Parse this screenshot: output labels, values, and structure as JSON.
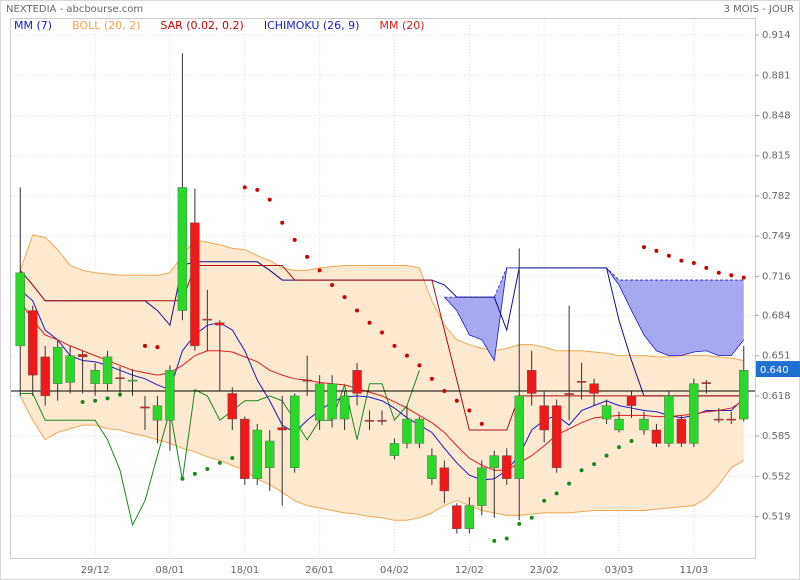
{
  "header": {
    "title": "NEXTEDIA - abcbourse.com",
    "period": "3 MOIS - JOUR"
  },
  "chart_data": {
    "type": "candlestick",
    "categories": [
      null,
      null,
      null,
      null,
      null,
      null,
      "29/12",
      null,
      null,
      null,
      null,
      null,
      "08/01",
      null,
      null,
      null,
      null,
      null,
      "18/01",
      null,
      null,
      null,
      null,
      null,
      "26/01",
      null,
      null,
      null,
      null,
      null,
      "04/02",
      null,
      null,
      null,
      null,
      null,
      "12/02",
      null,
      null,
      null,
      null,
      null,
      "23/02",
      null,
      null,
      null,
      null,
      null,
      "03/03",
      null,
      null,
      null,
      null,
      null,
      "11/03",
      null,
      null,
      null,
      null
    ],
    "open": [
      0.659,
      0.688,
      0.65,
      0.628,
      0.629,
      0.652,
      0.628,
      0.628,
      0.633,
      0.63,
      0.609,
      0.598,
      0.598,
      0.688,
      0.76,
      0.681,
      0.678,
      0.62,
      0.599,
      0.55,
      0.559,
      0.592,
      0.559,
      0.631,
      0.598,
      0.599,
      0.599,
      0.639,
      0.598,
      0.598,
      0.569,
      0.579,
      0.579,
      0.55,
      0.559,
      0.528,
      0.509,
      0.528,
      0.559,
      0.569,
      0.55,
      0.639,
      0.61,
      0.61,
      0.62,
      0.63,
      0.628,
      0.599,
      0.59,
      0.618,
      0.59,
      0.59,
      0.579,
      0.599,
      0.579,
      0.629,
      0.599,
      0.599,
      0.599
    ],
    "high": [
      0.789,
      0.692,
      0.659,
      0.664,
      0.659,
      0.655,
      0.645,
      0.655,
      0.642,
      0.64,
      0.618,
      0.618,
      0.643,
      0.899,
      0.788,
      0.705,
      0.68,
      0.625,
      0.601,
      0.595,
      0.59,
      0.618,
      0.62,
      0.651,
      0.635,
      0.635,
      0.622,
      0.645,
      0.606,
      0.606,
      0.583,
      0.61,
      0.601,
      0.575,
      0.565,
      0.53,
      0.535,
      0.565,
      0.573,
      0.575,
      0.739,
      0.655,
      0.622,
      0.615,
      0.692,
      0.645,
      0.632,
      0.615,
      0.605,
      0.622,
      0.605,
      0.595,
      0.622,
      0.602,
      0.632,
      0.631,
      0.608,
      0.605,
      0.659
    ],
    "low": [
      0.618,
      0.618,
      0.61,
      0.614,
      0.62,
      0.62,
      0.618,
      0.622,
      0.618,
      0.618,
      0.59,
      0.579,
      0.573,
      0.68,
      0.655,
      0.655,
      0.622,
      0.59,
      0.545,
      0.545,
      0.54,
      0.528,
      0.555,
      0.618,
      0.59,
      0.592,
      0.59,
      0.61,
      0.59,
      0.594,
      0.566,
      0.575,
      0.575,
      0.545,
      0.53,
      0.505,
      0.505,
      0.52,
      0.518,
      0.545,
      0.516,
      0.61,
      0.58,
      0.555,
      0.598,
      0.615,
      0.61,
      0.595,
      0.588,
      0.6,
      0.586,
      0.576,
      0.576,
      0.576,
      0.576,
      0.62,
      0.596,
      0.595,
      0.597
    ],
    "close": [
      0.719,
      0.635,
      0.618,
      0.658,
      0.651,
      0.65,
      0.639,
      0.65,
      0.632,
      0.631,
      0.608,
      0.61,
      0.639,
      0.789,
      0.659,
      0.68,
      0.676,
      0.599,
      0.55,
      0.59,
      0.581,
      0.59,
      0.618,
      0.63,
      0.628,
      0.628,
      0.618,
      0.62,
      0.597,
      0.597,
      0.579,
      0.599,
      0.599,
      0.569,
      0.54,
      0.509,
      0.528,
      0.559,
      0.569,
      0.55,
      0.618,
      0.62,
      0.59,
      0.559,
      0.619,
      0.629,
      0.62,
      0.61,
      0.599,
      0.61,
      0.599,
      0.579,
      0.618,
      0.579,
      0.628,
      0.628,
      0.598,
      0.598,
      0.639
    ],
    "up_color": "#2ad82a",
    "down_color": "#ee1a1a",
    "ylim": [
      0.485,
      0.928
    ],
    "yticks": [
      0.519,
      0.552,
      0.585,
      0.618,
      0.651,
      0.684,
      0.716,
      0.749,
      0.782,
      0.815,
      0.848,
      0.881,
      0.914
    ],
    "grid": true,
    "last_price": {
      "value": 0.64,
      "label": "0.640"
    },
    "reference_line": 0.622,
    "indicators": [
      {
        "name": "MM (7)",
        "type": "line",
        "color": "#1a1acc",
        "values": [
          0.705,
          0.696,
          0.672,
          0.664,
          0.651,
          0.647,
          0.646,
          0.643,
          0.639,
          0.635,
          0.632,
          0.627,
          0.623,
          0.655,
          0.668,
          0.676,
          0.678,
          0.672,
          0.655,
          0.631,
          0.614,
          0.594,
          0.588,
          0.598,
          0.606,
          0.613,
          0.617,
          0.618,
          0.617,
          0.614,
          0.608,
          0.6,
          0.594,
          0.588,
          0.575,
          0.563,
          0.553,
          0.549,
          0.55,
          0.557,
          0.569,
          0.59,
          0.598,
          0.602,
          0.594,
          0.606,
          0.61,
          0.614,
          0.61,
          0.608,
          0.606,
          0.605,
          0.602,
          0.6,
          0.602,
          0.606,
          0.606,
          0.606,
          0.616
        ]
      },
      {
        "name": "BOLL (20, 2)",
        "type": "band",
        "color": "#f0a850",
        "fill": "#fde8d0",
        "upper": [
          0.721,
          0.75,
          0.748,
          0.738,
          0.725,
          0.721,
          0.719,
          0.718,
          0.717,
          0.717,
          0.717,
          0.717,
          0.719,
          0.733,
          0.746,
          0.744,
          0.742,
          0.739,
          0.738,
          0.733,
          0.729,
          0.723,
          0.721,
          0.721,
          0.723,
          0.724,
          0.725,
          0.725,
          0.725,
          0.725,
          0.725,
          0.725,
          0.723,
          0.696,
          0.676,
          0.664,
          0.66,
          0.657,
          0.655,
          0.657,
          0.66,
          0.66,
          0.658,
          0.655,
          0.655,
          0.655,
          0.654,
          0.653,
          0.651,
          0.651,
          0.651,
          0.65,
          0.65,
          0.651,
          0.651,
          0.651,
          0.65,
          0.649,
          0.647
        ],
        "lower": [
          0.618,
          0.598,
          0.582,
          0.588,
          0.591,
          0.594,
          0.594,
          0.591,
          0.59,
          0.587,
          0.585,
          0.582,
          0.579,
          0.575,
          0.572,
          0.568,
          0.565,
          0.561,
          0.557,
          0.55,
          0.545,
          0.539,
          0.532,
          0.528,
          0.526,
          0.524,
          0.522,
          0.521,
          0.519,
          0.518,
          0.516,
          0.516,
          0.518,
          0.522,
          0.528,
          0.532,
          0.528,
          0.524,
          0.522,
          0.52,
          0.52,
          0.521,
          0.522,
          0.522,
          0.522,
          0.523,
          0.524,
          0.524,
          0.524,
          0.524,
          0.524,
          0.525,
          0.526,
          0.527,
          0.528,
          0.534,
          0.545,
          0.559,
          0.565
        ]
      },
      {
        "name": "SAR (0.02, 0.2)",
        "type": "dots",
        "color": "#cc0000",
        "below_color": "#1a8a1a",
        "values": [
          null,
          null,
          null,
          null,
          null,
          0.613,
          0.614,
          0.616,
          0.619,
          null,
          0.659,
          0.658,
          null,
          0.55,
          0.554,
          0.558,
          0.563,
          0.567,
          0.789,
          0.787,
          0.779,
          0.76,
          0.746,
          0.732,
          0.721,
          0.709,
          0.699,
          0.688,
          0.678,
          0.67,
          0.659,
          0.651,
          0.643,
          0.632,
          0.622,
          0.614,
          0.606,
          0.595,
          0.499,
          0.501,
          0.513,
          0.518,
          0.532,
          0.538,
          0.546,
          0.557,
          0.562,
          0.569,
          0.576,
          0.581,
          0.74,
          0.737,
          0.733,
          0.729,
          0.727,
          0.723,
          0.719,
          0.717,
          0.715
        ]
      },
      {
        "name": "ICHIMOKU (26, 9)",
        "type": "ichimoku",
        "color": "#1a1acc",
        "lines": [
          {
            "color": "#10108a",
            "values": [
              0.721,
              0.709,
              0.696,
              0.696,
              0.696,
              0.696,
              0.696,
              0.696,
              0.696,
              0.696,
              0.696,
              0.688,
              0.676,
              0.725,
              0.728,
              0.728,
              0.728,
              0.728,
              0.728,
              0.728,
              0.721,
              0.713,
              0.713,
              0.713,
              0.713,
              0.713,
              0.713,
              0.713,
              0.713,
              0.713,
              0.713,
              0.713,
              0.713,
              0.713,
              0.709,
              0.699,
              0.699,
              0.699,
              0.699,
              0.672,
              0.723,
              0.723,
              0.723,
              0.723,
              0.723,
              0.723,
              0.723,
              0.723,
              0.68,
              0.647,
              0.618,
              0.618,
              0.618,
              0.618,
              0.618,
              0.618,
              0.618,
              0.618,
              0.618
            ]
          },
          {
            "color": "#b01010",
            "values": [
              0.721,
              0.709,
              0.696,
              0.696,
              0.696,
              0.696,
              0.696,
              0.696,
              0.696,
              0.696,
              0.696,
              0.696,
              0.696,
              0.696,
              0.725,
              0.725,
              0.725,
              0.725,
              0.725,
              0.725,
              0.725,
              0.725,
              0.713,
              0.713,
              0.713,
              0.713,
              0.713,
              0.713,
              0.713,
              0.713,
              0.713,
              0.713,
              0.713,
              0.713,
              0.672,
              0.631,
              0.59,
              0.59,
              0.59,
              0.59,
              0.618,
              0.618,
              0.618,
              0.618,
              0.618,
              0.618,
              0.618,
              0.618,
              0.618,
              0.618,
              0.618,
              0.618,
              0.618,
              0.618,
              0.618,
              0.618,
              0.618,
              0.618,
              0.618
            ]
          },
          {
            "color": "#1a8a1a",
            "values": [
              0.62,
              0.62,
              0.598,
              0.598,
              0.598,
              0.598,
              0.598,
              0.582,
              0.557,
              0.512,
              0.532,
              0.569,
              0.606,
              0.549,
              0.623,
              0.618,
              0.598,
              0.606,
              0.614,
              0.614,
              0.618,
              0.614,
              0.598,
              0.582,
              0.598,
              0.598,
              0.627,
              0.582,
              0.628,
              0.628,
              0.598,
              0.61,
              0.639,
              null,
              null,
              null,
              null,
              null,
              null,
              null,
              null,
              null,
              null,
              null,
              null,
              null,
              null,
              null,
              null,
              null,
              null,
              null,
              null,
              null,
              null,
              null,
              null,
              null,
              null
            ]
          }
        ],
        "cloud_fill": "#a8a8f0",
        "cloud_upper": [
          null,
          null,
          null,
          null,
          null,
          null,
          null,
          null,
          null,
          null,
          null,
          null,
          null,
          null,
          null,
          null,
          null,
          null,
          null,
          null,
          null,
          null,
          null,
          null,
          null,
          null,
          null,
          null,
          null,
          null,
          null,
          null,
          null,
          null,
          0.699,
          0.699,
          0.699,
          0.699,
          0.699,
          0.723,
          0.723,
          0.723,
          0.723,
          0.723,
          0.723,
          0.723,
          0.723,
          0.723,
          0.713,
          0.713,
          0.713,
          0.713,
          0.713,
          0.713,
          0.713,
          0.713,
          0.713,
          0.713,
          0.713
        ],
        "cloud_lower": [
          null,
          null,
          null,
          null,
          null,
          null,
          null,
          null,
          null,
          null,
          null,
          null,
          null,
          null,
          null,
          null,
          null,
          null,
          null,
          null,
          null,
          null,
          null,
          null,
          null,
          null,
          null,
          null,
          null,
          null,
          null,
          null,
          null,
          null,
          0.699,
          0.688,
          0.668,
          0.664,
          0.647,
          0.723,
          0.723,
          0.723,
          0.723,
          0.723,
          0.723,
          0.723,
          0.723,
          0.723,
          0.709,
          0.688,
          0.668,
          0.655,
          0.651,
          0.651,
          0.654,
          0.655,
          0.651,
          0.651,
          0.664
        ]
      },
      {
        "name": "MM (20)",
        "type": "line",
        "color": "#e01a1a",
        "values": [
          0.696,
          0.68,
          0.668,
          0.664,
          0.659,
          0.655,
          0.651,
          0.647,
          0.643,
          0.639,
          0.637,
          0.635,
          0.637,
          0.643,
          0.651,
          0.655,
          0.655,
          0.654,
          0.65,
          0.646,
          0.639,
          0.635,
          0.632,
          0.631,
          0.629,
          0.628,
          0.627,
          0.624,
          0.621,
          0.618,
          0.613,
          0.608,
          0.602,
          0.596,
          0.588,
          0.577,
          0.567,
          0.561,
          0.557,
          0.557,
          0.563,
          0.569,
          0.577,
          0.586,
          0.591,
          0.596,
          0.6,
          0.601,
          0.602,
          0.602,
          0.602,
          0.601,
          0.601,
          0.602,
          0.603,
          0.605,
          0.606,
          0.608,
          0.614
        ]
      }
    ]
  }
}
